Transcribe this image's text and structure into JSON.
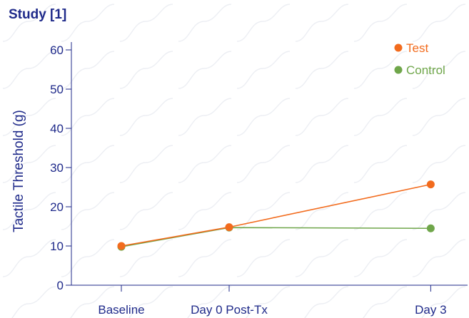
{
  "chart_data": {
    "type": "line",
    "title": "Study [1]",
    "xlabel": "",
    "ylabel": "Tactile Threshold (g)",
    "categories": [
      "Baseline",
      "Day 0 Post-Tx",
      "Day 3"
    ],
    "x_positions": [
      0,
      1,
      2.87
    ],
    "ylim": [
      0,
      62
    ],
    "yticks": [
      0,
      10,
      20,
      30,
      40,
      50,
      60
    ],
    "grid": false,
    "legend_placement": "top-right",
    "series": [
      {
        "name": "Test",
        "color": "#f26b1d",
        "values": [
          10,
          14.8,
          25.7
        ]
      },
      {
        "name": "Control",
        "color": "#6fa64a",
        "values": [
          9.8,
          14.7,
          14.5
        ]
      }
    ]
  },
  "colors": {
    "title": "#1f2a8a",
    "axis": "#1f2a8a",
    "watermark": "#eceef3"
  }
}
